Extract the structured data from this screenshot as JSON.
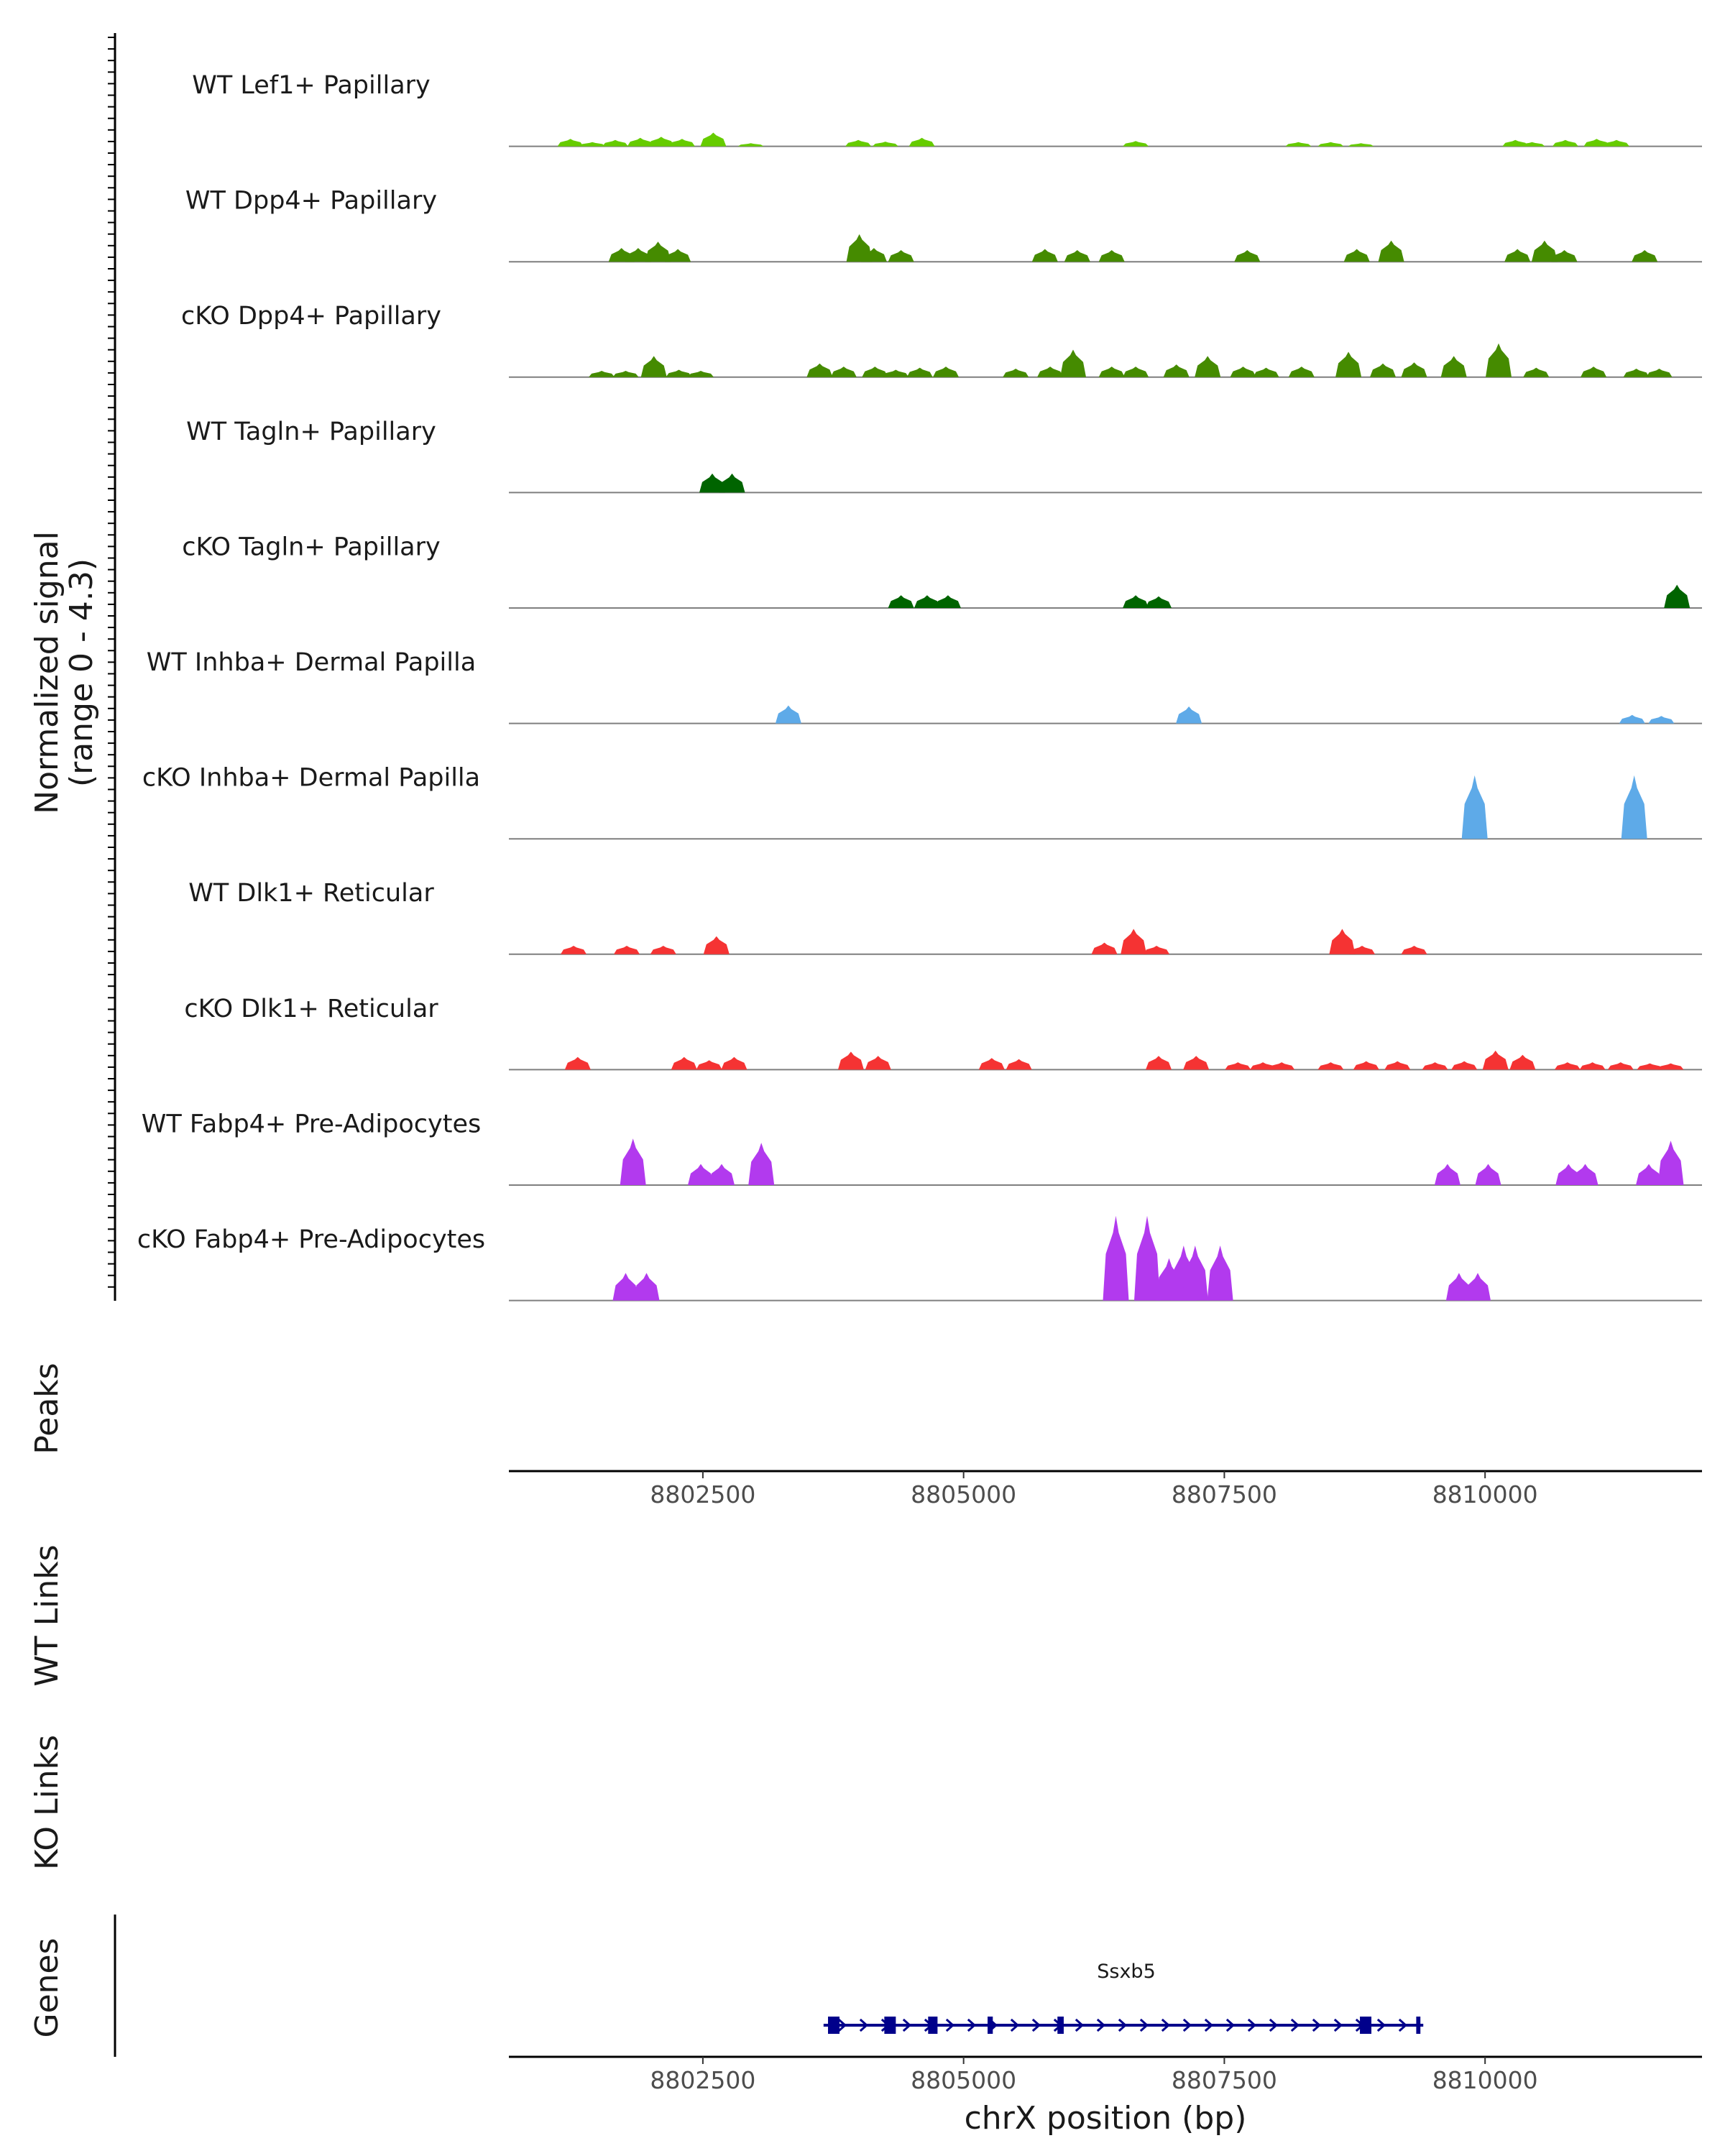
{
  "chart_data": {
    "type": "area",
    "title": "",
    "ylabel": "Normalized signal",
    "ylabel_range": "(range 0 - 4.3)",
    "xlabel": "chrX position (bp)",
    "xlim": [
      8800640,
      8812080
    ],
    "xticks": [
      8802500,
      8805000,
      8807500,
      8810000
    ],
    "xtick_labels": [
      "8802500",
      "8805000",
      "8807500",
      "8810000"
    ],
    "signal_max": 4.3,
    "tracks": [
      {
        "name": "WT Lef1+ Papillary",
        "color": "#66cc00",
        "peaks": [
          [
            8801230,
            0.35
          ],
          [
            8801440,
            0.2
          ],
          [
            8801660,
            0.3
          ],
          [
            8801900,
            0.4
          ],
          [
            8802100,
            0.45
          ],
          [
            8802300,
            0.35
          ],
          [
            8802600,
            0.65
          ],
          [
            8802960,
            0.15
          ],
          [
            8803990,
            0.3
          ],
          [
            8804250,
            0.22
          ],
          [
            8804600,
            0.4
          ],
          [
            8806650,
            0.25
          ],
          [
            8808210,
            0.2
          ],
          [
            8808520,
            0.2
          ],
          [
            8808810,
            0.15
          ],
          [
            8810290,
            0.3
          ],
          [
            8810450,
            0.2
          ],
          [
            8810770,
            0.3
          ],
          [
            8811070,
            0.35
          ],
          [
            8811260,
            0.3
          ]
        ]
      },
      {
        "name": "WT Dpp4+ Papillary",
        "color": "#458b00",
        "peaks": [
          [
            8801720,
            0.65
          ],
          [
            8801880,
            0.65
          ],
          [
            8802070,
            0.95
          ],
          [
            8802260,
            0.6
          ],
          [
            8804000,
            1.3
          ],
          [
            8804140,
            0.65
          ],
          [
            8804400,
            0.55
          ],
          [
            8805780,
            0.6
          ],
          [
            8806090,
            0.55
          ],
          [
            8806420,
            0.55
          ],
          [
            8807720,
            0.55
          ],
          [
            8808770,
            0.6
          ],
          [
            8809100,
            1.0
          ],
          [
            8810310,
            0.6
          ],
          [
            8810570,
            1.0
          ],
          [
            8810760,
            0.55
          ],
          [
            8811530,
            0.55
          ]
        ]
      },
      {
        "name": "cKO Dpp4+ Papillary",
        "color": "#458b00",
        "peaks": [
          [
            8801530,
            0.3
          ],
          [
            8801760,
            0.3
          ],
          [
            8802030,
            1.0
          ],
          [
            8802270,
            0.35
          ],
          [
            8802480,
            0.3
          ],
          [
            8803620,
            0.65
          ],
          [
            8803850,
            0.5
          ],
          [
            8804150,
            0.5
          ],
          [
            8804350,
            0.35
          ],
          [
            8804580,
            0.45
          ],
          [
            8804830,
            0.5
          ],
          [
            8805500,
            0.4
          ],
          [
            8805830,
            0.5
          ],
          [
            8806050,
            1.3
          ],
          [
            8806420,
            0.5
          ],
          [
            8806650,
            0.5
          ],
          [
            8807040,
            0.6
          ],
          [
            8807340,
            1.0
          ],
          [
            8807680,
            0.5
          ],
          [
            8807900,
            0.45
          ],
          [
            8808240,
            0.5
          ],
          [
            8808690,
            1.2
          ],
          [
            8809020,
            0.65
          ],
          [
            8809320,
            0.7
          ],
          [
            8809700,
            1.0
          ],
          [
            8810130,
            1.6
          ],
          [
            8810490,
            0.45
          ],
          [
            8811040,
            0.5
          ],
          [
            8811450,
            0.4
          ],
          [
            8811670,
            0.4
          ]
        ]
      },
      {
        "name": "WT Tagln+ Papillary",
        "color": "#006400",
        "peaks": [
          [
            8802590,
            0.9
          ],
          [
            8802780,
            0.9
          ]
        ]
      },
      {
        "name": "cKO Tagln+ Papillary",
        "color": "#006400",
        "peaks": [
          [
            8804400,
            0.6
          ],
          [
            8804650,
            0.6
          ],
          [
            8804850,
            0.6
          ],
          [
            8806650,
            0.6
          ],
          [
            8806870,
            0.55
          ],
          [
            8811840,
            1.1
          ]
        ]
      },
      {
        "name": "WT Inhba+ Dermal Papilla",
        "color": "#5eaae8",
        "peaks": [
          [
            8803320,
            0.85
          ],
          [
            8807160,
            0.8
          ],
          [
            8811410,
            0.4
          ],
          [
            8811690,
            0.35
          ]
        ]
      },
      {
        "name": "cKO Inhba+ Dermal Papilla",
        "color": "#5eaae8",
        "peaks": [
          [
            8809900,
            3.0
          ],
          [
            8811430,
            3.0
          ]
        ]
      },
      {
        "name": "WT Dlk1+ Reticular",
        "color": "#f53333",
        "peaks": [
          [
            8801260,
            0.4
          ],
          [
            8801770,
            0.4
          ],
          [
            8802120,
            0.4
          ],
          [
            8802630,
            0.85
          ],
          [
            8806350,
            0.55
          ],
          [
            8806630,
            1.2
          ],
          [
            8806850,
            0.4
          ],
          [
            8808630,
            1.2
          ],
          [
            8808820,
            0.4
          ],
          [
            8809320,
            0.4
          ]
        ]
      },
      {
        "name": "cKO Dlk1+ Reticular",
        "color": "#f53333",
        "peaks": [
          [
            8801300,
            0.6
          ],
          [
            8802320,
            0.6
          ],
          [
            8802560,
            0.45
          ],
          [
            8802800,
            0.6
          ],
          [
            8803920,
            0.85
          ],
          [
            8804180,
            0.65
          ],
          [
            8805270,
            0.55
          ],
          [
            8805530,
            0.5
          ],
          [
            8806870,
            0.65
          ],
          [
            8807230,
            0.65
          ],
          [
            8807630,
            0.35
          ],
          [
            8807870,
            0.35
          ],
          [
            8808050,
            0.35
          ],
          [
            8808520,
            0.35
          ],
          [
            8808860,
            0.4
          ],
          [
            8809160,
            0.4
          ],
          [
            8809520,
            0.35
          ],
          [
            8809800,
            0.4
          ],
          [
            8810100,
            0.9
          ],
          [
            8810360,
            0.7
          ],
          [
            8810790,
            0.35
          ],
          [
            8811030,
            0.35
          ],
          [
            8811300,
            0.35
          ],
          [
            8811580,
            0.3
          ],
          [
            8811780,
            0.3
          ]
        ]
      },
      {
        "name": "WT Fabp4+ Pre-Adipocytes",
        "color": "#b23aee",
        "peaks": [
          [
            8801830,
            2.2
          ],
          [
            8802480,
            1.0
          ],
          [
            8802680,
            1.0
          ],
          [
            8803060,
            2.0
          ],
          [
            8809640,
            1.0
          ],
          [
            8810030,
            1.0
          ],
          [
            8810800,
            1.0
          ],
          [
            8810960,
            1.0
          ],
          [
            8811570,
            1.0
          ],
          [
            8811780,
            2.1
          ]
        ]
      },
      {
        "name": "cKO Fabp4+ Pre-Adipocytes",
        "color": "#b23aee",
        "peaks": [
          [
            8801760,
            1.3
          ],
          [
            8801960,
            1.3
          ],
          [
            8806460,
            4.0
          ],
          [
            8806760,
            4.0
          ],
          [
            8806970,
            2.0
          ],
          [
            8807110,
            2.6
          ],
          [
            8807220,
            2.6
          ],
          [
            8807460,
            2.6
          ],
          [
            8809750,
            1.3
          ],
          [
            8809930,
            1.3
          ]
        ]
      }
    ],
    "panels": [
      "Peaks",
      "WT Links",
      "KO Links",
      "Genes"
    ],
    "gene": {
      "name": "Ssxb5",
      "start": 8803740,
      "end": 8809380,
      "strand": "+",
      "exons": [
        [
          8803700,
          8803810
        ],
        [
          8804240,
          8804350
        ],
        [
          8804660,
          8804750
        ],
        [
          8805230,
          8805280
        ],
        [
          8805900,
          8805960
        ],
        [
          8808800,
          8808910
        ],
        [
          8809340,
          8809380
        ]
      ],
      "color": "#00008b"
    }
  }
}
